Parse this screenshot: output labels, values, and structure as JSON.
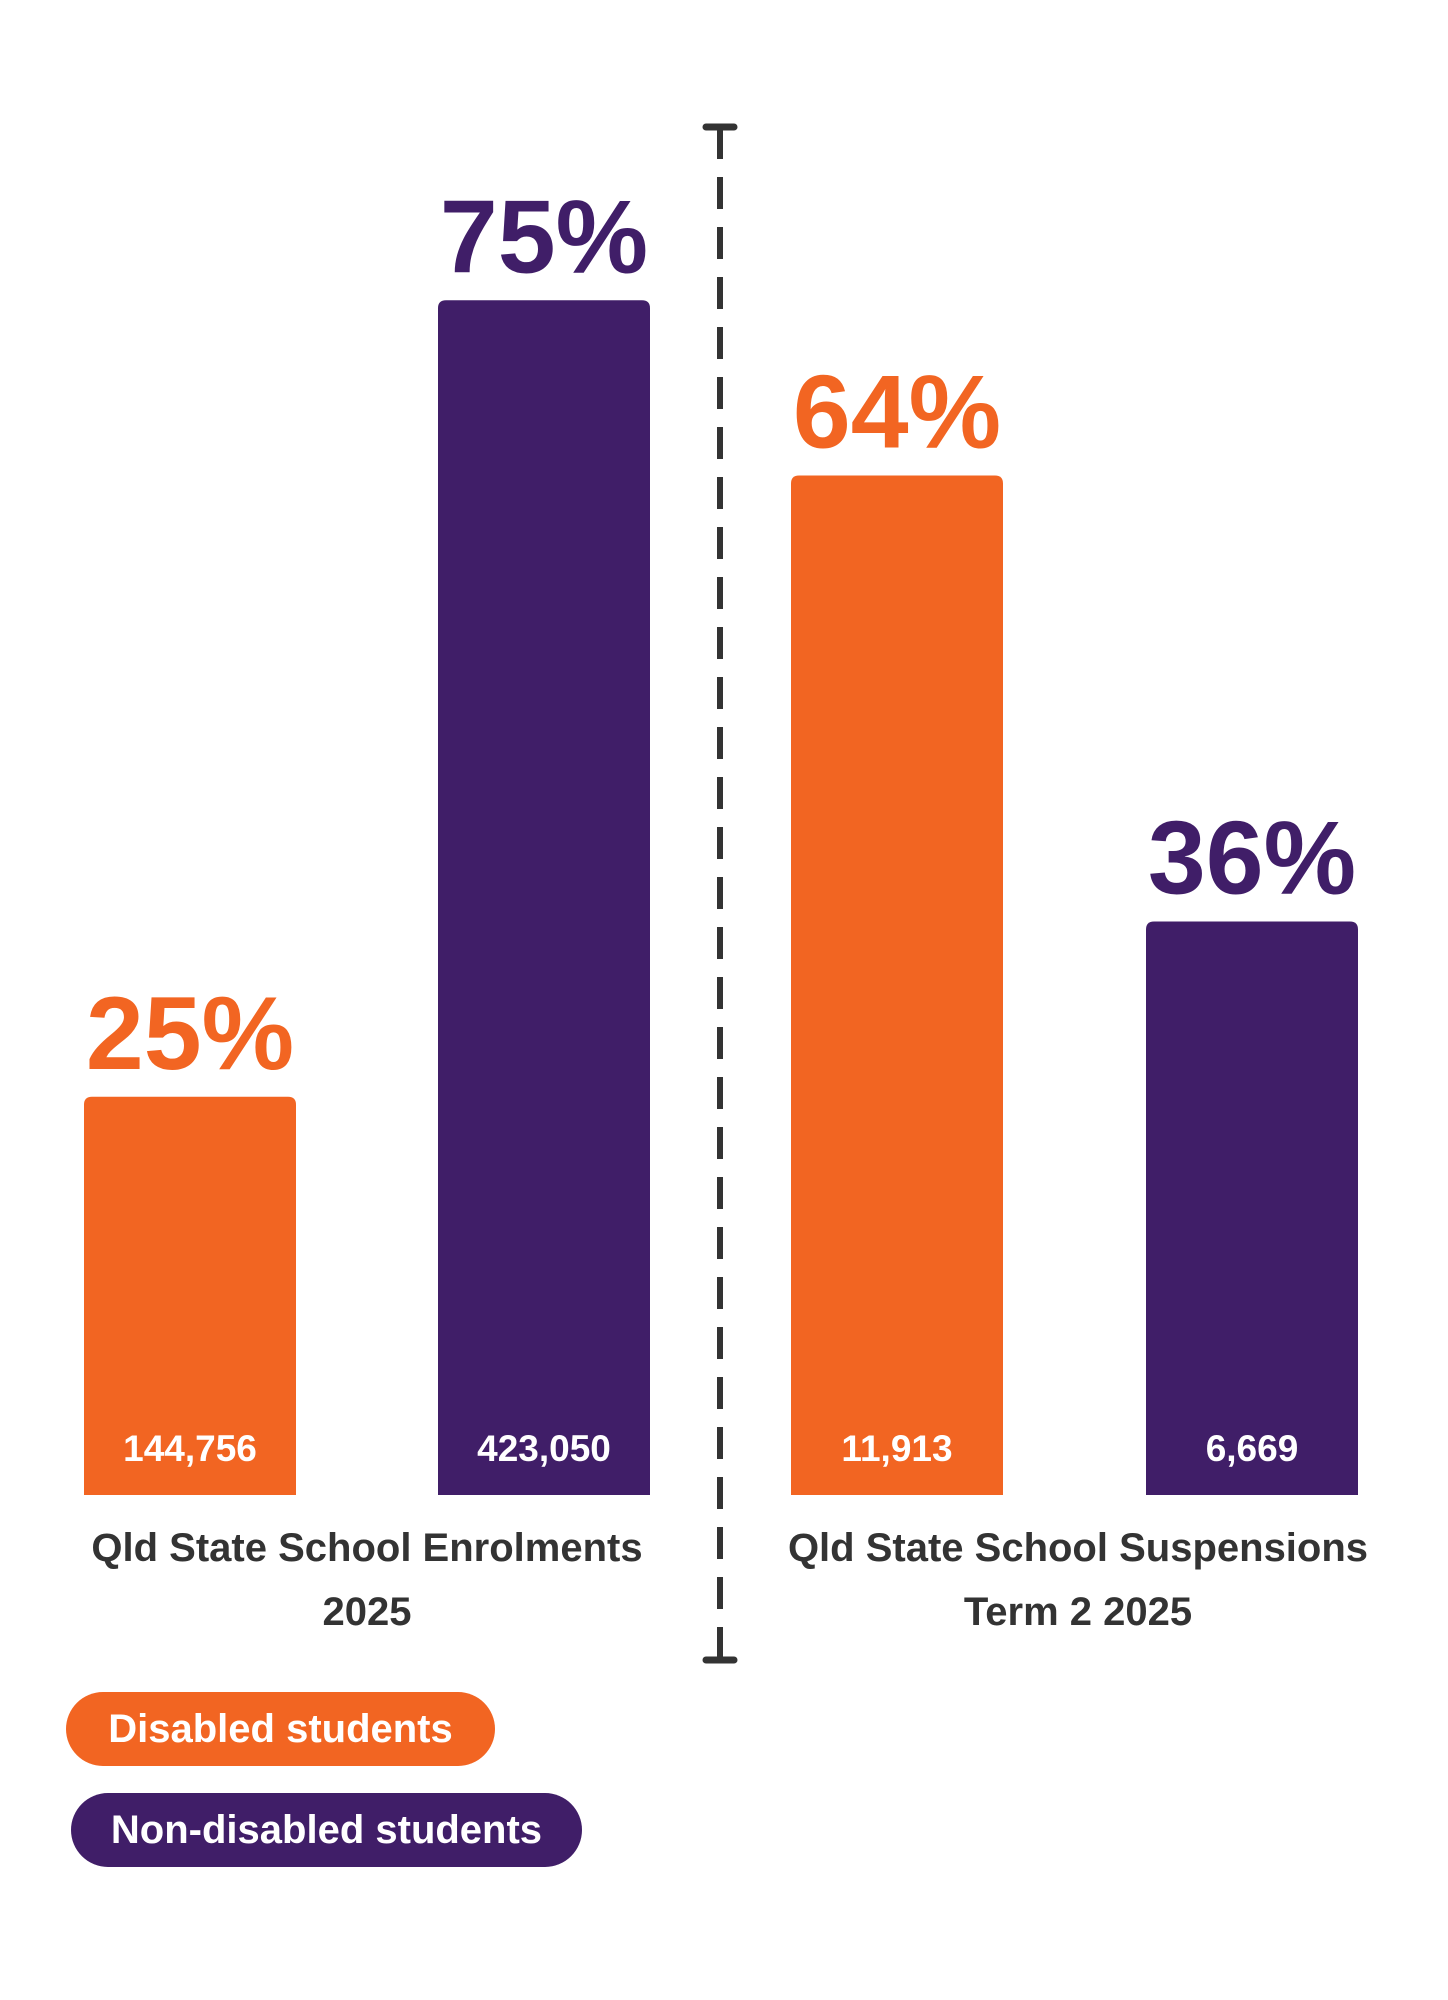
{
  "colors": {
    "disabled": "#F26522",
    "non_disabled": "#401E68",
    "divider": "#333333",
    "text": "#333333"
  },
  "chart_data": {
    "type": "bar",
    "groups": [
      {
        "label_line1": "Qld State School Enrolments",
        "label_line2": "2025",
        "bars": [
          {
            "series": "Disabled students",
            "percent": 25,
            "percent_label": "25%",
            "count_label": "144,756"
          },
          {
            "series": "Non-disabled students",
            "percent": 75,
            "percent_label": "75%",
            "count_label": "423,050"
          }
        ]
      },
      {
        "label_line1": "Qld State School Suspensions",
        "label_line2": "Term 2 2025",
        "bars": [
          {
            "series": "Disabled students",
            "percent": 64,
            "percent_label": "64%",
            "count_label": "11,913"
          },
          {
            "series": "Non-disabled students",
            "percent": 36,
            "percent_label": "36%",
            "count_label": "6,669"
          }
        ]
      }
    ],
    "legend": [
      {
        "name": "Disabled students",
        "color": "#F26522"
      },
      {
        "name": "Non-disabled students",
        "color": "#401E68"
      }
    ],
    "legend_placement": "bottom-left",
    "grid": false,
    "ylim": [
      0,
      100
    ]
  }
}
